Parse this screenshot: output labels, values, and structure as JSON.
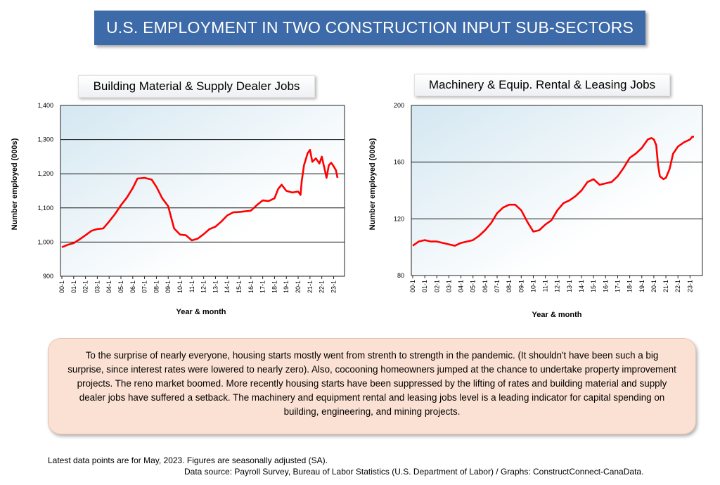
{
  "banner": {
    "title": "U.S. EMPLOYMENT IN TWO CONSTRUCTION INPUT SUB-SECTORS"
  },
  "colors": {
    "banner": "#3d6aa8",
    "line": "#ff0000",
    "note_bg": "#fbe1d3"
  },
  "note": {
    "text": "To the surprise of nearly everyone, housing starts mostly went from strenth to strength in the pandemic.  (It shouldn't have been such a big surprise, since interest rates were lowered to nearly zero). Also, cocooning homeowners jumped at the chance to undertake property improvement projects. The reno market boomed. More recently housing starts have been suppressed by the lifting of rates and building material and supply dealer jobs have suffered a setback. The machinery and equipment rental and leasing jobs level is a leading indicator for capital spending on building, engineering, and mining projects."
  },
  "footer": {
    "line1": "Latest data points are for May, 2023. Figures are seasonally adjusted (SA).",
    "line2": "Data source: Payroll Survey, Bureau of Labor Statistics (U.S. Department of Labor) / Graphs: ConstructConnect-CanaData."
  },
  "chart_data": [
    {
      "type": "line",
      "title": "Building Material & Supply Dealer Jobs",
      "xlabel": "Year & month",
      "ylabel": "Number employed (000s)",
      "ylim": [
        900,
        1400
      ],
      "yticks": [
        "900",
        "1,000",
        "1,100",
        "1,200",
        "1,300",
        "1,400"
      ],
      "xticks": [
        "00-1",
        "01-1",
        "02-1",
        "03-1",
        "04-1",
        "05-1",
        "06-1",
        "07-1",
        "08-1",
        "09-1",
        "10-1",
        "11-1",
        "12-1",
        "13-1",
        "14-1",
        "15-1",
        "16-1",
        "17-1",
        "18-1",
        "19-1",
        "20-1",
        "21-1",
        "22-1",
        "23-1"
      ],
      "grid": "horizontal",
      "series": [
        {
          "x": [
            2000.0,
            2000.5,
            2001.0,
            2001.5,
            2002.0,
            2002.5,
            2003.0,
            2003.5,
            2004.0,
            2004.5,
            2005.0,
            2005.5,
            2006.0,
            2006.4,
            2007.0,
            2007.6,
            2008.0,
            2008.5,
            2009.0,
            2009.5,
            2010.0,
            2010.5,
            2011.0,
            2011.5,
            2012.0,
            2012.5,
            2013.0,
            2013.5,
            2014.0,
            2014.5,
            2015.0,
            2015.5,
            2016.0,
            2016.5,
            2017.0,
            2017.5,
            2018.0,
            2018.3,
            2018.6,
            2019.0,
            2019.5,
            2020.0,
            2020.2,
            2020.3,
            2020.5,
            2020.8,
            2021.0,
            2021.2,
            2021.5,
            2021.8,
            2022.0,
            2022.2,
            2022.4,
            2022.6,
            2022.8,
            2023.0,
            2023.2,
            2023.33
          ],
          "y": [
            985,
            992,
            997,
            1008,
            1020,
            1033,
            1038,
            1040,
            1060,
            1082,
            1108,
            1130,
            1158,
            1186,
            1188,
            1183,
            1162,
            1128,
            1105,
            1040,
            1022,
            1020,
            1005,
            1010,
            1023,
            1038,
            1045,
            1060,
            1078,
            1087,
            1088,
            1090,
            1092,
            1108,
            1122,
            1120,
            1128,
            1155,
            1168,
            1150,
            1145,
            1148,
            1138,
            1178,
            1225,
            1260,
            1270,
            1235,
            1245,
            1230,
            1250,
            1220,
            1188,
            1225,
            1232,
            1222,
            1210,
            1188
          ]
        }
      ]
    },
    {
      "type": "line",
      "title": "Machinery & Equip. Rental & Leasing Jobs",
      "xlabel": "Year & month",
      "ylabel": "Number employed (000s)",
      "ylim": [
        80,
        200
      ],
      "yticks": [
        "80",
        "120",
        "160",
        "200"
      ],
      "xticks": [
        "00-1",
        "01-1",
        "02-1",
        "03-1",
        "04-1",
        "05-1",
        "06-1",
        "07-1",
        "08-1",
        "09-1",
        "10-1",
        "11-1",
        "12-1",
        "13-1",
        "14-1",
        "15-1",
        "16-1",
        "17-1",
        "18-1",
        "19-1",
        "20-1",
        "21-1",
        "22-1",
        "23-1"
      ],
      "grid": "horizontal",
      "series": [
        {
          "x": [
            2000.0,
            2000.5,
            2001.0,
            2001.5,
            2002.0,
            2002.5,
            2003.0,
            2003.5,
            2004.0,
            2004.5,
            2005.0,
            2005.5,
            2006.0,
            2006.5,
            2007.0,
            2007.5,
            2008.0,
            2008.5,
            2009.0,
            2009.5,
            2010.0,
            2010.5,
            2011.0,
            2011.5,
            2012.0,
            2012.5,
            2013.0,
            2013.5,
            2014.0,
            2014.5,
            2015.0,
            2015.5,
            2016.0,
            2016.5,
            2017.0,
            2017.5,
            2018.0,
            2018.5,
            2019.0,
            2019.5,
            2019.8,
            2020.0,
            2020.2,
            2020.35,
            2020.5,
            2020.8,
            2021.0,
            2021.3,
            2021.6,
            2022.0,
            2022.5,
            2023.0,
            2023.2,
            2023.33
          ],
          "y": [
            101,
            104,
            105,
            104,
            104,
            103,
            102,
            101,
            103,
            104,
            105,
            108,
            112,
            117,
            124,
            128,
            130,
            130,
            126,
            118,
            111,
            112,
            116,
            119,
            126,
            131,
            133,
            136,
            140,
            146,
            148,
            144,
            145,
            146,
            150,
            156,
            163,
            166,
            170,
            176,
            177,
            176,
            172,
            158,
            150,
            148,
            149,
            155,
            166,
            171,
            174,
            176,
            178,
            178
          ]
        }
      ]
    }
  ]
}
